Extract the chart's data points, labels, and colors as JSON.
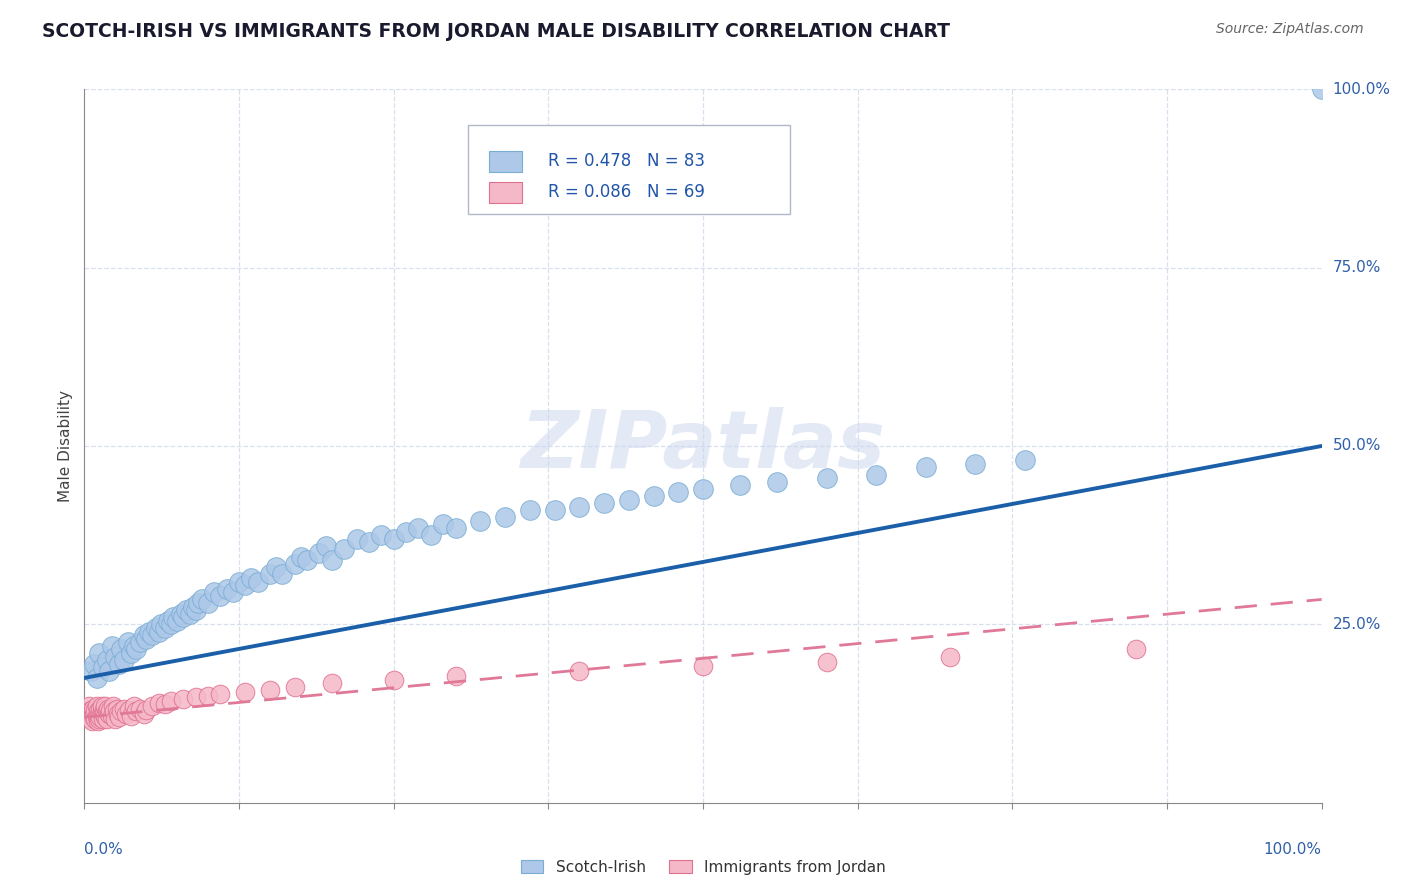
{
  "title": "SCOTCH-IRISH VS IMMIGRANTS FROM JORDAN MALE DISABILITY CORRELATION CHART",
  "source": "Source: ZipAtlas.com",
  "ylabel": "Male Disability",
  "scotch_irish_color": "#adc8e8",
  "scotch_irish_edge": "#7aadd4",
  "jordan_color": "#f5b8c8",
  "jordan_edge": "#e07090",
  "line1_color": "#1a5fa8",
  "line2_color": "#e07898",
  "watermark": "ZIPatlas",
  "scotch_irish_x": [
    0.005,
    0.008,
    0.01,
    0.012,
    0.015,
    0.018,
    0.02,
    0.022,
    0.025,
    0.028,
    0.03,
    0.032,
    0.035,
    0.038,
    0.04,
    0.042,
    0.045,
    0.048,
    0.05,
    0.052,
    0.055,
    0.058,
    0.06,
    0.062,
    0.065,
    0.068,
    0.07,
    0.072,
    0.075,
    0.078,
    0.08,
    0.082,
    0.085,
    0.088,
    0.09,
    0.092,
    0.095,
    0.1,
    0.105,
    0.11,
    0.115,
    0.12,
    0.125,
    0.13,
    0.135,
    0.14,
    0.15,
    0.155,
    0.16,
    0.17,
    0.175,
    0.18,
    0.19,
    0.195,
    0.2,
    0.21,
    0.22,
    0.23,
    0.24,
    0.25,
    0.26,
    0.27,
    0.28,
    0.29,
    0.3,
    0.32,
    0.34,
    0.36,
    0.38,
    0.4,
    0.42,
    0.44,
    0.46,
    0.48,
    0.5,
    0.53,
    0.56,
    0.6,
    0.64,
    0.68,
    0.72,
    0.76,
    1.0
  ],
  "scotch_irish_y": [
    0.185,
    0.195,
    0.175,
    0.21,
    0.19,
    0.2,
    0.185,
    0.22,
    0.205,
    0.195,
    0.215,
    0.2,
    0.225,
    0.21,
    0.22,
    0.215,
    0.225,
    0.235,
    0.23,
    0.24,
    0.235,
    0.245,
    0.24,
    0.25,
    0.245,
    0.255,
    0.25,
    0.26,
    0.255,
    0.265,
    0.26,
    0.27,
    0.265,
    0.275,
    0.27,
    0.28,
    0.285,
    0.28,
    0.295,
    0.29,
    0.3,
    0.295,
    0.31,
    0.305,
    0.315,
    0.31,
    0.32,
    0.33,
    0.32,
    0.335,
    0.345,
    0.34,
    0.35,
    0.36,
    0.34,
    0.355,
    0.37,
    0.365,
    0.375,
    0.37,
    0.38,
    0.385,
    0.375,
    0.39,
    0.385,
    0.395,
    0.4,
    0.41,
    0.41,
    0.415,
    0.42,
    0.425,
    0.43,
    0.435,
    0.44,
    0.445,
    0.45,
    0.455,
    0.46,
    0.47,
    0.475,
    0.48,
    1.0
  ],
  "jordan_x": [
    0.003,
    0.004,
    0.005,
    0.005,
    0.006,
    0.006,
    0.007,
    0.007,
    0.008,
    0.008,
    0.009,
    0.009,
    0.01,
    0.01,
    0.011,
    0.011,
    0.012,
    0.012,
    0.013,
    0.013,
    0.014,
    0.014,
    0.015,
    0.015,
    0.016,
    0.016,
    0.017,
    0.017,
    0.018,
    0.018,
    0.019,
    0.02,
    0.021,
    0.022,
    0.023,
    0.024,
    0.025,
    0.026,
    0.027,
    0.028,
    0.03,
    0.032,
    0.034,
    0.036,
    0.038,
    0.04,
    0.042,
    0.045,
    0.048,
    0.05,
    0.055,
    0.06,
    0.065,
    0.07,
    0.08,
    0.09,
    0.1,
    0.11,
    0.13,
    0.15,
    0.17,
    0.2,
    0.25,
    0.3,
    0.4,
    0.5,
    0.6,
    0.7,
    0.85
  ],
  "jordan_y": [
    0.125,
    0.135,
    0.118,
    0.13,
    0.122,
    0.115,
    0.128,
    0.132,
    0.12,
    0.125,
    0.118,
    0.13,
    0.122,
    0.135,
    0.128,
    0.115,
    0.125,
    0.118,
    0.132,
    0.12,
    0.128,
    0.135,
    0.122,
    0.118,
    0.13,
    0.125,
    0.122,
    0.135,
    0.118,
    0.128,
    0.132,
    0.125,
    0.13,
    0.122,
    0.135,
    0.128,
    0.118,
    0.132,
    0.125,
    0.12,
    0.128,
    0.132,
    0.125,
    0.13,
    0.122,
    0.135,
    0.128,
    0.132,
    0.125,
    0.13,
    0.135,
    0.14,
    0.138,
    0.142,
    0.145,
    0.148,
    0.15,
    0.152,
    0.155,
    0.158,
    0.162,
    0.168,
    0.172,
    0.178,
    0.185,
    0.192,
    0.198,
    0.205,
    0.215
  ],
  "line1_x_start": 0.0,
  "line1_x_end": 1.0,
  "line1_y_start": 0.175,
  "line1_y_end": 0.5,
  "line2_x_start": 0.0,
  "line2_x_end": 1.0,
  "line2_y_start": 0.12,
  "line2_y_end": 0.285,
  "xlim": [
    0.0,
    1.0
  ],
  "ylim": [
    0.0,
    1.0
  ],
  "background_color": "#ffffff",
  "grid_color": "#d0d8e8"
}
